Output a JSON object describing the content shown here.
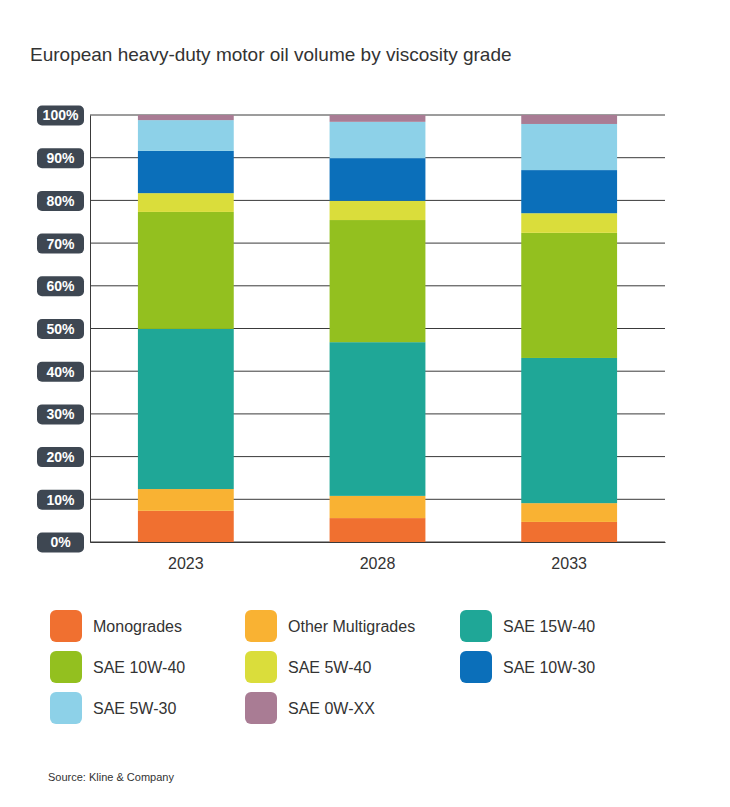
{
  "chart_data": {
    "type": "bar",
    "stacked": true,
    "title": "European heavy-duty motor oil volume by viscosity grade",
    "source": "Source: Kline & Company",
    "categories": [
      "2023",
      "2028",
      "2033"
    ],
    "series": [
      {
        "name": "Monogrades",
        "color": "#f07030",
        "values": [
          7.3,
          5.6,
          4.7
        ]
      },
      {
        "name": "Other Multigrades",
        "color": "#f9b233",
        "values": [
          5.1,
          5.2,
          4.4
        ]
      },
      {
        "name": "SAE 15W-40",
        "color": "#1fa797",
        "values": [
          37.5,
          36.0,
          34.0
        ]
      },
      {
        "name": "SAE 10W-40",
        "color": "#93c01f",
        "values": [
          27.4,
          28.6,
          29.3
        ]
      },
      {
        "name": "SAE 5W-40",
        "color": "#dadd3b",
        "values": [
          4.4,
          4.5,
          4.6
        ]
      },
      {
        "name": "SAE 10W-30",
        "color": "#0b6fba",
        "values": [
          9.9,
          10.0,
          10.1
        ]
      },
      {
        "name": "SAE 5W-30",
        "color": "#8dd1e8",
        "values": [
          7.2,
          8.5,
          10.8
        ]
      },
      {
        "name": "SAE 0W-XX",
        "color": "#a97c94",
        "values": [
          1.2,
          1.6,
          2.1
        ]
      }
    ],
    "ylim": [
      0,
      100
    ],
    "yticks": [
      {
        "value": 0,
        "label": "0%"
      },
      {
        "value": 10,
        "label": "10%"
      },
      {
        "value": 20,
        "label": "20%"
      },
      {
        "value": 30,
        "label": "30%"
      },
      {
        "value": 40,
        "label": "40%"
      },
      {
        "value": 50,
        "label": "50%"
      },
      {
        "value": 60,
        "label": "60%"
      },
      {
        "value": 70,
        "label": "70%"
      },
      {
        "value": 80,
        "label": "80%"
      },
      {
        "value": 90,
        "label": "90%"
      },
      {
        "value": 100,
        "label": "100%"
      }
    ],
    "grid": true,
    "legend": "bottom",
    "data_labels": false
  }
}
